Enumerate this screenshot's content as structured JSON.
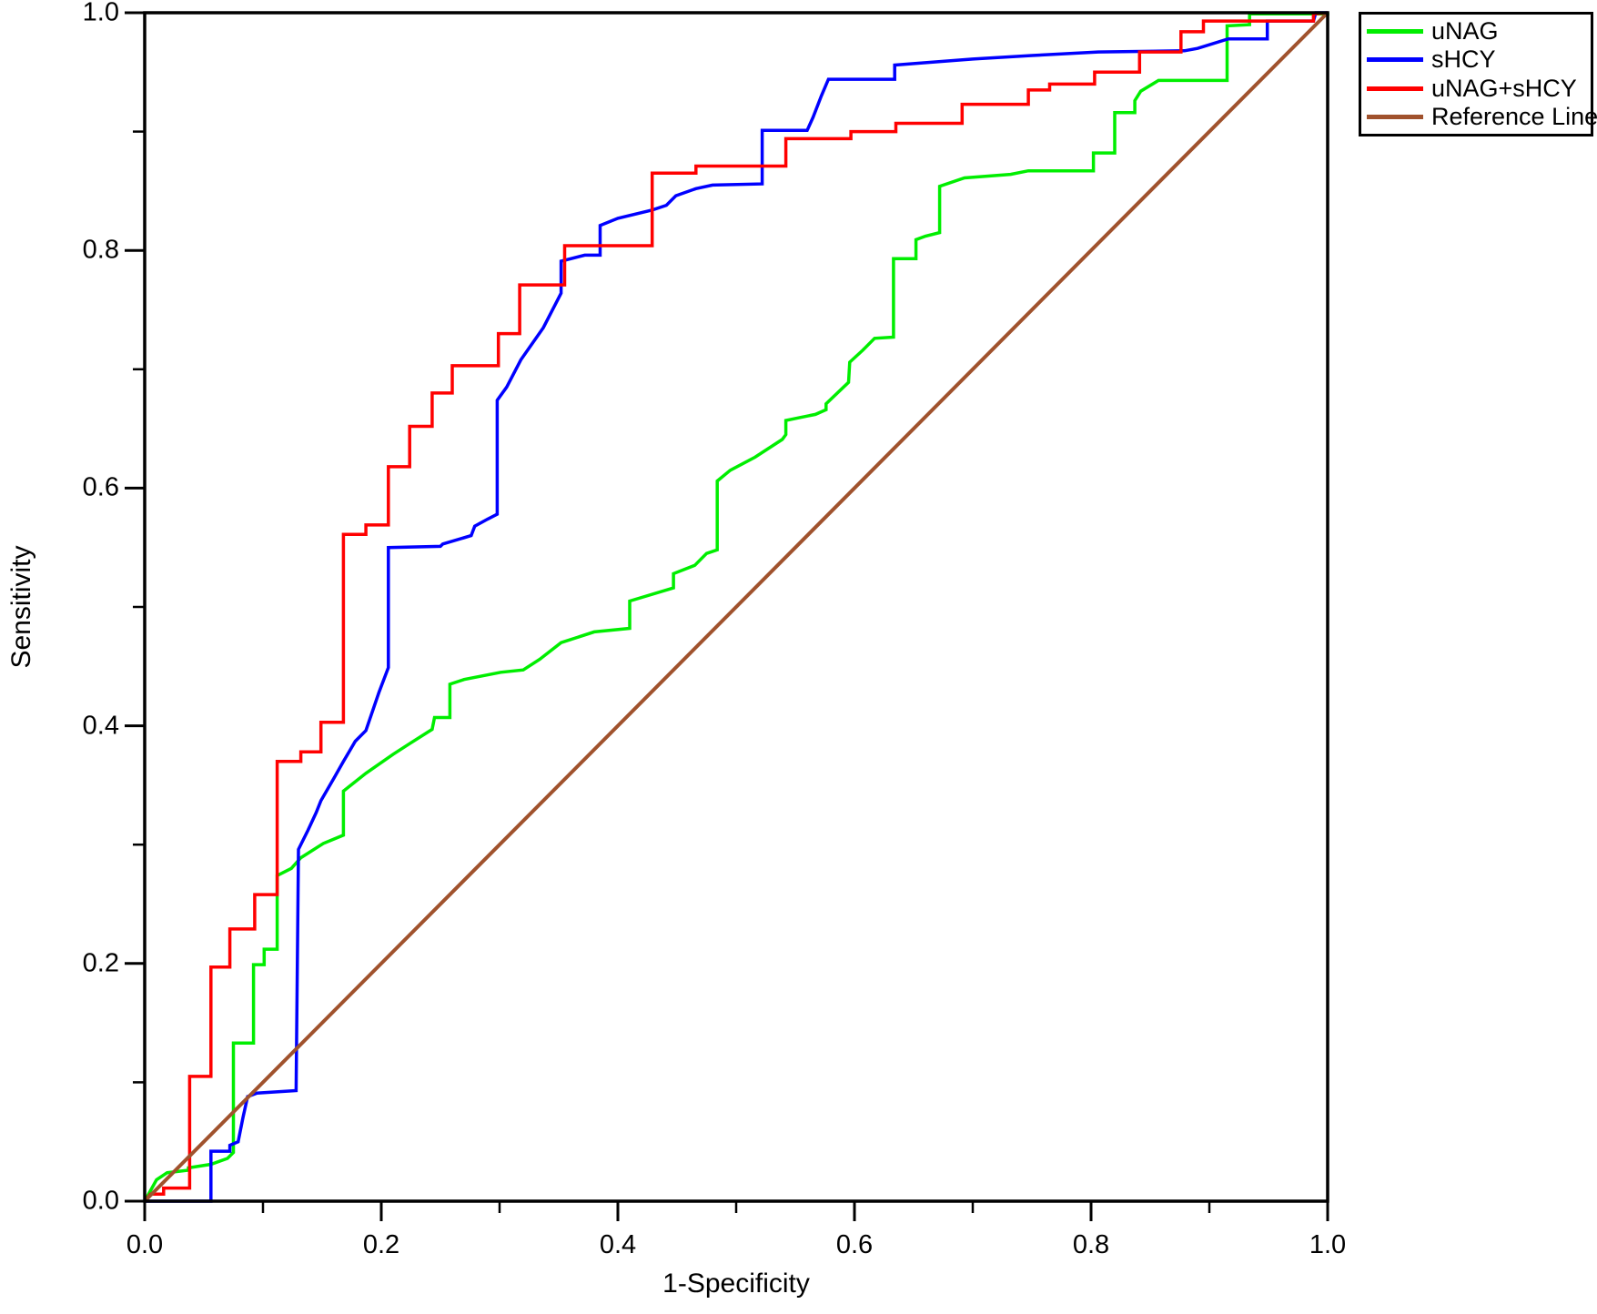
{
  "chart_data": {
    "type": "line",
    "subtype": "roc-step-curves",
    "title": "",
    "xlabel": "1-Specificity",
    "ylabel": "Sensitivity",
    "xlim": [
      0.0,
      1.0
    ],
    "ylim": [
      0.0,
      1.0
    ],
    "grid": false,
    "legend_position": "top-right-outside",
    "x_major_ticks": [
      0.0,
      0.2,
      0.4,
      0.6,
      0.8,
      1.0
    ],
    "x_minor_ticks": [
      0.1,
      0.3,
      0.5,
      0.7,
      0.9
    ],
    "y_major_ticks": [
      0.0,
      0.2,
      0.4,
      0.6,
      0.8,
      1.0
    ],
    "y_minor_ticks": [
      0.1,
      0.3,
      0.5,
      0.7,
      0.9
    ],
    "x_tick_labels": [
      "0.0",
      "0.2",
      "0.4",
      "0.6",
      "0.8",
      "1.0"
    ],
    "y_tick_labels": [
      "0.0",
      "0.2",
      "0.4",
      "0.6",
      "0.8",
      "1.0"
    ],
    "axis_color": "#000000",
    "series": [
      {
        "name": "uNAG",
        "color": "#00EE00",
        "width": 3.5,
        "points": [
          [
            0.0,
            0.0
          ],
          [
            0.01,
            0.018
          ],
          [
            0.019,
            0.024
          ],
          [
            0.037,
            0.026
          ],
          [
            0.037,
            0.028
          ],
          [
            0.056,
            0.031
          ],
          [
            0.07,
            0.036
          ],
          [
            0.075,
            0.041
          ],
          [
            0.075,
            0.133
          ],
          [
            0.092,
            0.133
          ],
          [
            0.092,
            0.199
          ],
          [
            0.101,
            0.199
          ],
          [
            0.101,
            0.212
          ],
          [
            0.112,
            0.212
          ],
          [
            0.112,
            0.274
          ],
          [
            0.124,
            0.28
          ],
          [
            0.132,
            0.289
          ],
          [
            0.151,
            0.301
          ],
          [
            0.168,
            0.308
          ],
          [
            0.168,
            0.345
          ],
          [
            0.187,
            0.36
          ],
          [
            0.21,
            0.376
          ],
          [
            0.224,
            0.385
          ],
          [
            0.243,
            0.397
          ],
          [
            0.245,
            0.407
          ],
          [
            0.258,
            0.407
          ],
          [
            0.258,
            0.435
          ],
          [
            0.27,
            0.439
          ],
          [
            0.301,
            0.445
          ],
          [
            0.32,
            0.447
          ],
          [
            0.334,
            0.456
          ],
          [
            0.352,
            0.47
          ],
          [
            0.38,
            0.479
          ],
          [
            0.41,
            0.482
          ],
          [
            0.41,
            0.505
          ],
          [
            0.447,
            0.516
          ],
          [
            0.447,
            0.528
          ],
          [
            0.465,
            0.535
          ],
          [
            0.475,
            0.545
          ],
          [
            0.484,
            0.548
          ],
          [
            0.484,
            0.606
          ],
          [
            0.495,
            0.615
          ],
          [
            0.516,
            0.626
          ],
          [
            0.539,
            0.641
          ],
          [
            0.542,
            0.645
          ],
          [
            0.542,
            0.657
          ],
          [
            0.567,
            0.662
          ],
          [
            0.576,
            0.666
          ],
          [
            0.576,
            0.671
          ],
          [
            0.595,
            0.689
          ],
          [
            0.596,
            0.706
          ],
          [
            0.607,
            0.716
          ],
          [
            0.617,
            0.726
          ],
          [
            0.633,
            0.727
          ],
          [
            0.633,
            0.793
          ],
          [
            0.652,
            0.793
          ],
          [
            0.652,
            0.809
          ],
          [
            0.66,
            0.812
          ],
          [
            0.672,
            0.815
          ],
          [
            0.672,
            0.854
          ],
          [
            0.693,
            0.861
          ],
          [
            0.732,
            0.864
          ],
          [
            0.747,
            0.867
          ],
          [
            0.802,
            0.867
          ],
          [
            0.802,
            0.882
          ],
          [
            0.82,
            0.882
          ],
          [
            0.82,
            0.916
          ],
          [
            0.837,
            0.916
          ],
          [
            0.837,
            0.926
          ],
          [
            0.842,
            0.934
          ],
          [
            0.857,
            0.943
          ],
          [
            0.915,
            0.943
          ],
          [
            0.915,
            0.989
          ],
          [
            0.934,
            0.99
          ],
          [
            0.934,
            0.999
          ],
          [
            1.0,
            0.999
          ],
          [
            1.0,
            1.0
          ]
        ]
      },
      {
        "name": "sHCY",
        "color": "#0000FF",
        "width": 3.5,
        "points": [
          [
            0.0,
            0.0
          ],
          [
            0.056,
            0.0
          ],
          [
            0.056,
            0.042
          ],
          [
            0.072,
            0.042
          ],
          [
            0.072,
            0.047
          ],
          [
            0.079,
            0.05
          ],
          [
            0.083,
            0.07
          ],
          [
            0.087,
            0.088
          ],
          [
            0.095,
            0.091
          ],
          [
            0.128,
            0.093
          ],
          [
            0.13,
            0.296
          ],
          [
            0.138,
            0.312
          ],
          [
            0.145,
            0.327
          ],
          [
            0.149,
            0.337
          ],
          [
            0.16,
            0.356
          ],
          [
            0.168,
            0.37
          ],
          [
            0.178,
            0.387
          ],
          [
            0.187,
            0.396
          ],
          [
            0.198,
            0.428
          ],
          [
            0.206,
            0.449
          ],
          [
            0.206,
            0.55
          ],
          [
            0.25,
            0.551
          ],
          [
            0.252,
            0.553
          ],
          [
            0.276,
            0.56
          ],
          [
            0.279,
            0.568
          ],
          [
            0.29,
            0.574
          ],
          [
            0.298,
            0.578
          ],
          [
            0.298,
            0.674
          ],
          [
            0.306,
            0.685
          ],
          [
            0.318,
            0.708
          ],
          [
            0.337,
            0.735
          ],
          [
            0.352,
            0.764
          ],
          [
            0.352,
            0.791
          ],
          [
            0.372,
            0.796
          ],
          [
            0.385,
            0.796
          ],
          [
            0.385,
            0.821
          ],
          [
            0.4,
            0.827
          ],
          [
            0.429,
            0.834
          ],
          [
            0.441,
            0.838
          ],
          [
            0.449,
            0.846
          ],
          [
            0.466,
            0.852
          ],
          [
            0.48,
            0.855
          ],
          [
            0.522,
            0.856
          ],
          [
            0.522,
            0.901
          ],
          [
            0.56,
            0.901
          ],
          [
            0.565,
            0.912
          ],
          [
            0.572,
            0.93
          ],
          [
            0.578,
            0.944
          ],
          [
            0.634,
            0.944
          ],
          [
            0.634,
            0.956
          ],
          [
            0.66,
            0.958
          ],
          [
            0.7,
            0.961
          ],
          [
            0.75,
            0.964
          ],
          [
            0.806,
            0.967
          ],
          [
            0.879,
            0.968
          ],
          [
            0.89,
            0.97
          ],
          [
            0.916,
            0.978
          ],
          [
            0.949,
            0.978
          ],
          [
            0.949,
            0.993
          ],
          [
            0.988,
            0.993
          ],
          [
            0.99,
            1.0
          ],
          [
            1.0,
            1.0
          ]
        ]
      },
      {
        "name": "uNAG+sHCY",
        "color": "#FF0000",
        "width": 3.5,
        "points": [
          [
            0.0,
            0.0
          ],
          [
            0.005,
            0.006
          ],
          [
            0.016,
            0.006
          ],
          [
            0.016,
            0.011
          ],
          [
            0.038,
            0.011
          ],
          [
            0.038,
            0.105
          ],
          [
            0.056,
            0.105
          ],
          [
            0.056,
            0.197
          ],
          [
            0.072,
            0.197
          ],
          [
            0.072,
            0.229
          ],
          [
            0.093,
            0.229
          ],
          [
            0.093,
            0.258
          ],
          [
            0.112,
            0.258
          ],
          [
            0.112,
            0.37
          ],
          [
            0.132,
            0.37
          ],
          [
            0.132,
            0.378
          ],
          [
            0.149,
            0.378
          ],
          [
            0.149,
            0.403
          ],
          [
            0.168,
            0.403
          ],
          [
            0.168,
            0.561
          ],
          [
            0.187,
            0.561
          ],
          [
            0.187,
            0.569
          ],
          [
            0.206,
            0.569
          ],
          [
            0.206,
            0.618
          ],
          [
            0.224,
            0.618
          ],
          [
            0.224,
            0.652
          ],
          [
            0.243,
            0.652
          ],
          [
            0.243,
            0.68
          ],
          [
            0.26,
            0.68
          ],
          [
            0.26,
            0.703
          ],
          [
            0.299,
            0.703
          ],
          [
            0.299,
            0.73
          ],
          [
            0.317,
            0.73
          ],
          [
            0.317,
            0.771
          ],
          [
            0.355,
            0.771
          ],
          [
            0.355,
            0.804
          ],
          [
            0.429,
            0.804
          ],
          [
            0.429,
            0.865
          ],
          [
            0.466,
            0.865
          ],
          [
            0.466,
            0.871
          ],
          [
            0.542,
            0.871
          ],
          [
            0.542,
            0.894
          ],
          [
            0.597,
            0.894
          ],
          [
            0.597,
            0.9
          ],
          [
            0.635,
            0.9
          ],
          [
            0.635,
            0.907
          ],
          [
            0.691,
            0.907
          ],
          [
            0.691,
            0.923
          ],
          [
            0.747,
            0.923
          ],
          [
            0.747,
            0.935
          ],
          [
            0.765,
            0.935
          ],
          [
            0.765,
            0.94
          ],
          [
            0.803,
            0.94
          ],
          [
            0.803,
            0.95
          ],
          [
            0.841,
            0.95
          ],
          [
            0.841,
            0.967
          ],
          [
            0.876,
            0.967
          ],
          [
            0.876,
            0.984
          ],
          [
            0.895,
            0.984
          ],
          [
            0.895,
            0.993
          ],
          [
            0.988,
            0.993
          ],
          [
            0.988,
            0.999
          ],
          [
            1.0,
            1.0
          ]
        ]
      },
      {
        "name": "Reference Line",
        "color": "#A0522D",
        "width": 4,
        "points": [
          [
            0.0,
            0.0
          ],
          [
            1.0,
            1.0
          ]
        ]
      }
    ]
  },
  "legend": {
    "items": [
      {
        "label": "uNAG",
        "color": "#00EE00"
      },
      {
        "label": "sHCY",
        "color": "#0000FF"
      },
      {
        "label": "uNAG+sHCY",
        "color": "#FF0000"
      },
      {
        "label": "Reference Line",
        "color": "#A0522D"
      }
    ]
  },
  "axes": {
    "x_title": "1-Specificity",
    "y_title": "Sensitivity"
  }
}
